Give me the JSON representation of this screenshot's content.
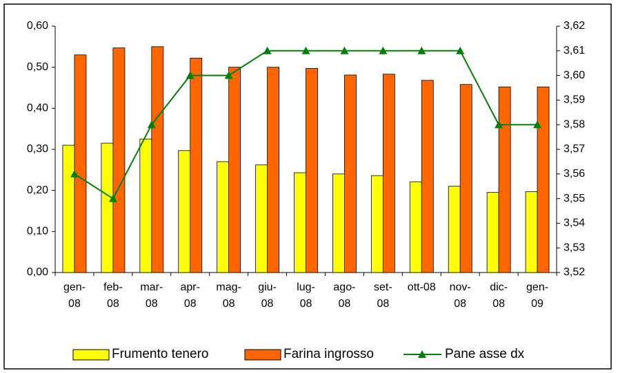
{
  "chart_data": {
    "type": "bar-line",
    "categories": [
      "gen-\n08",
      "feb-\n08",
      "mar-\n08",
      "apr-\n08",
      "mag-\n08",
      "giu-\n08",
      "lug-\n08",
      "ago-\n08",
      "set-\n08",
      "ott-08",
      "nov-\n08",
      "dic-\n08",
      "gen-\n09"
    ],
    "series": [
      {
        "name": "Frumento tenero",
        "type": "bar",
        "color": "#ffff00",
        "values": [
          0.31,
          0.315,
          0.325,
          0.297,
          0.27,
          0.262,
          0.243,
          0.24,
          0.236,
          0.221,
          0.21,
          0.195,
          0.197
        ]
      },
      {
        "name": "Farina ingrosso",
        "type": "bar",
        "color": "#ff6600",
        "values": [
          0.53,
          0.547,
          0.55,
          0.522,
          0.5,
          0.5,
          0.497,
          0.481,
          0.483,
          0.468,
          0.458,
          0.452,
          0.452
        ]
      },
      {
        "name": "Pane asse dx",
        "type": "line",
        "axis": "y2",
        "color": "#008000",
        "values": [
          3.56,
          3.55,
          3.58,
          3.6,
          3.6,
          3.61,
          3.61,
          3.61,
          3.61,
          3.61,
          3.61,
          3.58,
          3.58
        ]
      }
    ],
    "ylim": [
      0,
      0.6
    ],
    "yticks": [
      {
        "value": 0,
        "label": "0,00"
      },
      {
        "value": 0.1,
        "label": "0,10"
      },
      {
        "value": 0.2,
        "label": "0,20"
      },
      {
        "value": 0.3,
        "label": "0,30"
      },
      {
        "value": 0.4,
        "label": "0,40"
      },
      {
        "value": 0.5,
        "label": "0,50"
      },
      {
        "value": 0.6,
        "label": "0,60"
      }
    ],
    "y2lim": [
      3.52,
      3.62
    ],
    "y2ticks": [
      {
        "value": 3.52,
        "label": "3,52"
      },
      {
        "value": 3.53,
        "label": "3,53"
      },
      {
        "value": 3.54,
        "label": "3,54"
      },
      {
        "value": 3.55,
        "label": "3,55"
      },
      {
        "value": 3.56,
        "label": "3,56"
      },
      {
        "value": 3.57,
        "label": "3,57"
      },
      {
        "value": 3.58,
        "label": "3,58"
      },
      {
        "value": 3.59,
        "label": "3,59"
      },
      {
        "value": 3.6,
        "label": "3,60"
      },
      {
        "value": 3.61,
        "label": "3,61"
      },
      {
        "value": 3.62,
        "label": "3,62"
      }
    ],
    "legend": "bottom"
  }
}
